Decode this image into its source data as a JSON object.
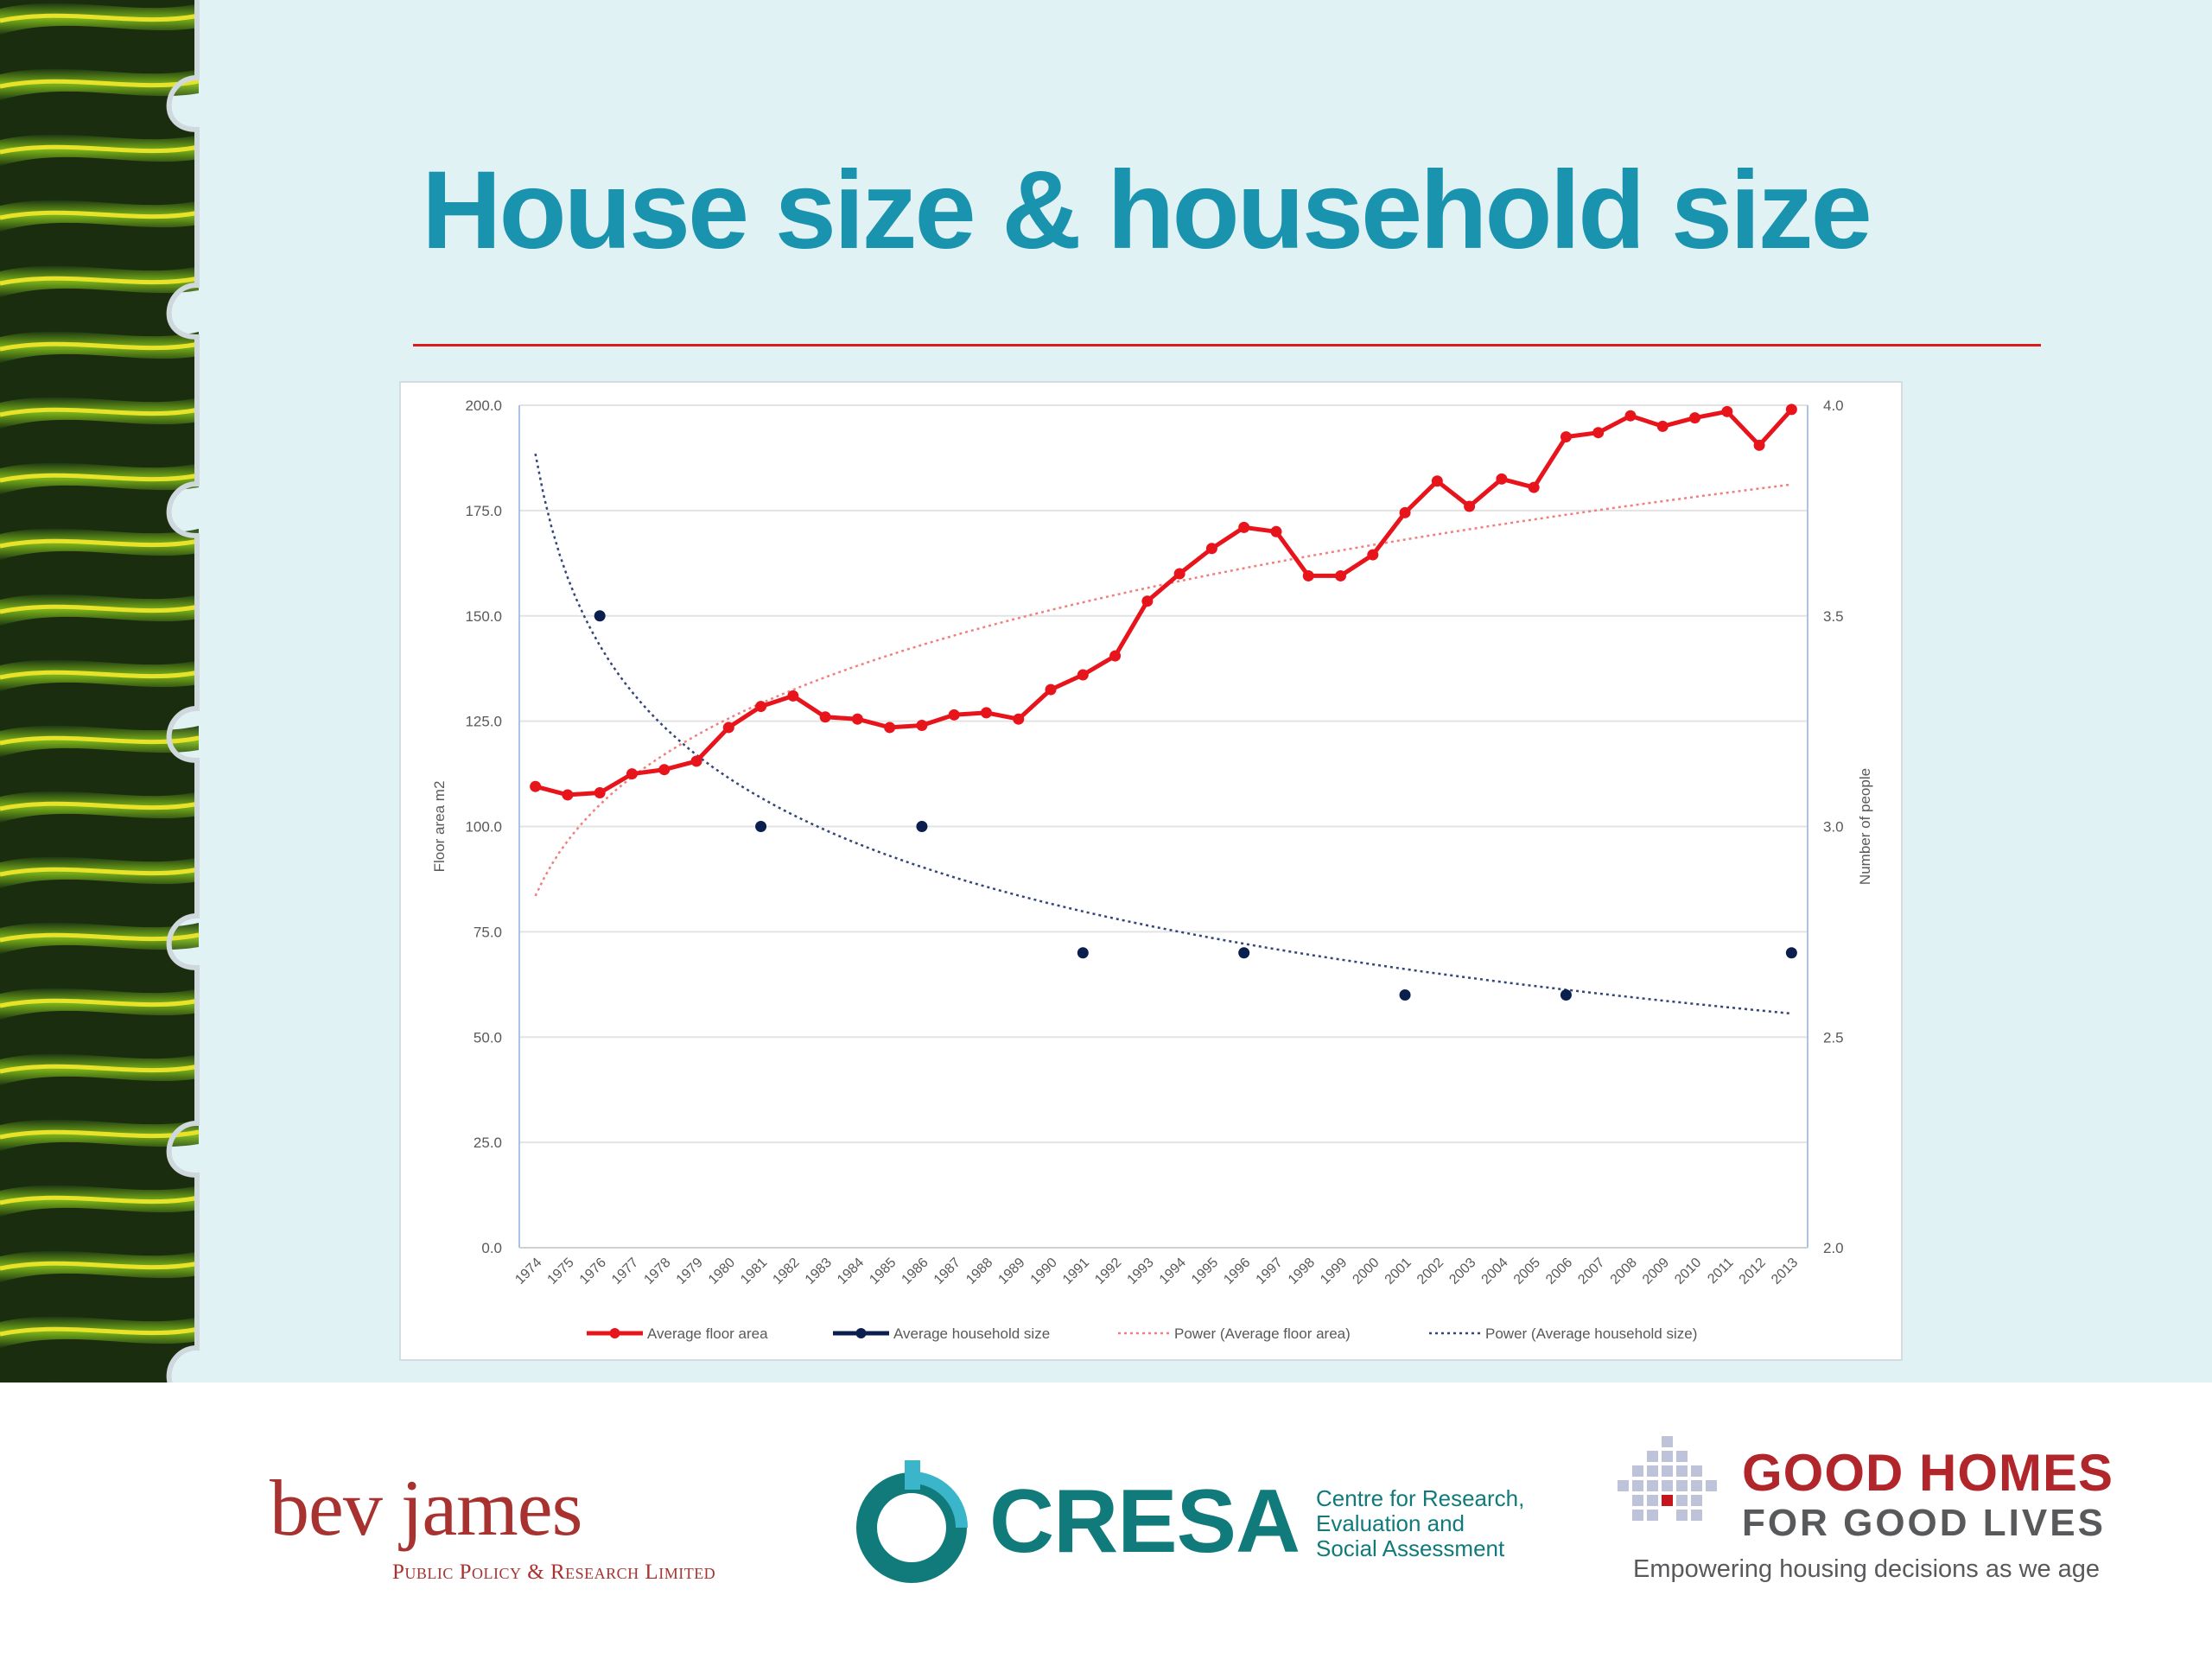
{
  "slide": {
    "title": "House size & household size"
  },
  "logos": {
    "bevjames": {
      "name": "bev james",
      "subtitle": "Public Policy & Research Limited"
    },
    "cresa": {
      "name": "CRESA",
      "tagline": [
        "Centre for Research,",
        "Evaluation and",
        "Social Assessment"
      ]
    },
    "goodhomes": {
      "line1": "GOOD HOMES",
      "line2": "FOR GOOD LIVES",
      "tagline": "Empowering housing decisions as we age"
    }
  },
  "colors": {
    "title": "#1a93ae",
    "rule": "#e01919",
    "floor_area": "#e8141c",
    "household": "#0b1f4f",
    "trend_household": "#33457a",
    "background": "#e1f2f5"
  },
  "chart_data": {
    "type": "line",
    "title": "",
    "ylabel": "Floor area m2",
    "y2label": "Number of people",
    "ylim": [
      0,
      200
    ],
    "y2lim": [
      2.0,
      4.0
    ],
    "yticks": [
      "0.0",
      "25.0",
      "50.0",
      "75.0",
      "100.0",
      "125.0",
      "150.0",
      "175.0",
      "200.0"
    ],
    "y2ticks": [
      "2.0",
      "2.5",
      "3.0",
      "3.5",
      "4.0"
    ],
    "grid": true,
    "legend_position": "bottom",
    "categories": [
      "1974",
      "1975",
      "1976",
      "1977",
      "1978",
      "1979",
      "1980",
      "1981",
      "1982",
      "1983",
      "1984",
      "1985",
      "1986",
      "1987",
      "1988",
      "1989",
      "1990",
      "1991",
      "1992",
      "1993",
      "1994",
      "1995",
      "1996",
      "1997",
      "1998",
      "1999",
      "2000",
      "2001",
      "2002",
      "2003",
      "2004",
      "2005",
      "2006",
      "2007",
      "2008",
      "2009",
      "2010",
      "2011",
      "2012",
      "2013"
    ],
    "series": [
      {
        "name": "Average floor area",
        "axis": "left",
        "values": [
          109.5,
          107.5,
          108,
          112.5,
          113.5,
          115.5,
          123.5,
          128.5,
          131,
          126,
          125.5,
          123.5,
          124,
          126.5,
          127,
          125.5,
          132.5,
          136,
          140.5,
          153.5,
          160,
          166,
          171,
          170,
          159.5,
          159.5,
          164.5,
          174.5,
          182,
          176,
          182.5,
          180.5,
          192.5,
          193.5,
          197.5,
          195,
          197,
          198.5,
          190.5,
          199
        ]
      },
      {
        "name": "Average household size",
        "axis": "right",
        "points": [
          {
            "x": "1976",
            "y": 3.5
          },
          {
            "x": "1981",
            "y": 3.0
          },
          {
            "x": "1986",
            "y": 3.0
          },
          {
            "x": "1991",
            "y": 2.7
          },
          {
            "x": "1996",
            "y": 2.7
          },
          {
            "x": "2001",
            "y": 2.6
          },
          {
            "x": "2006",
            "y": 2.6
          },
          {
            "x": "2013",
            "y": 2.7
          }
        ]
      },
      {
        "name": "Power (Average floor area)",
        "axis": "left",
        "trend": "power",
        "coefficients": {
          "a": 83.5,
          "b": 0.21
        }
      },
      {
        "name": "Power (Average household size)",
        "axis": "right",
        "trend": "power",
        "coefficients": {
          "a": 3.885,
          "b": -0.1135
        }
      }
    ]
  }
}
